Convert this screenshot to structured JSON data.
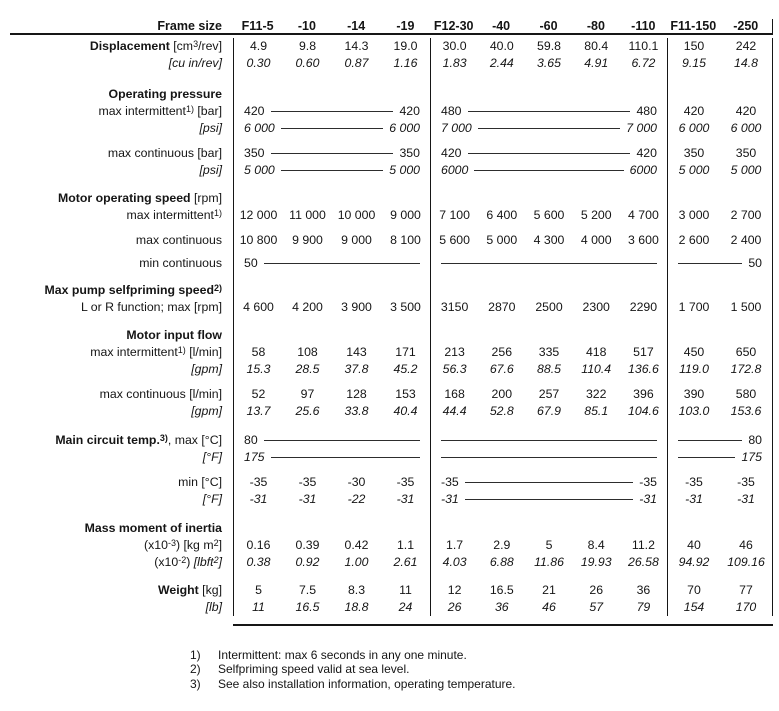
{
  "header": {
    "label": "Frame size",
    "columns": [
      "F11-5",
      "-10",
      "-14",
      "-19",
      "F12-30",
      "-40",
      "-60",
      "-80",
      "-110",
      "F11-150",
      "-250"
    ]
  },
  "rows": [
    {
      "label": [
        {
          "t": "Displacement",
          "s": "b"
        },
        {
          "t": " [cm"
        },
        {
          "t": "3",
          "s": "sup"
        },
        {
          "t": "/rev]"
        }
      ],
      "groups": [
        {
          "cells": [
            "4.9",
            "9.8",
            "14.3",
            "19.0"
          ]
        },
        {
          "cells": [
            "30.0",
            "40.0",
            "59.8",
            "80.4",
            "110.1"
          ]
        },
        {
          "cells": [
            "150",
            "242"
          ]
        }
      ]
    },
    {
      "italic": true,
      "label": [
        {
          "t": "[cu in/rev]",
          "s": "i"
        }
      ],
      "groups": [
        {
          "cells": [
            "0.30",
            "0.60",
            "0.87",
            "1.16"
          ]
        },
        {
          "cells": [
            "1.83",
            "2.44",
            "3.65",
            "4.91",
            "6.72"
          ]
        },
        {
          "cells": [
            "9.15",
            "14.8"
          ]
        }
      ]
    },
    {
      "spacer": 14
    },
    {
      "label": [
        {
          "t": "Operating pressure",
          "s": "b"
        }
      ],
      "groups": [
        {},
        {},
        {}
      ]
    },
    {
      "label": [
        {
          "t": "max intermittent"
        },
        {
          "t": "1)",
          "s": "sup"
        },
        {
          "t": " [bar]"
        }
      ],
      "groups": [
        {
          "left": "420",
          "right": "420"
        },
        {
          "left": "480",
          "right": "480"
        },
        {
          "cells": [
            "420",
            "420"
          ]
        }
      ]
    },
    {
      "italic": true,
      "label": [
        {
          "t": "[psi]",
          "s": "i"
        }
      ],
      "groups": [
        {
          "left": "6 000",
          "right": "6 000"
        },
        {
          "left": "7 000",
          "right": "7 000"
        },
        {
          "cells": [
            "6 000",
            "6 000"
          ]
        }
      ]
    },
    {
      "spacer": 8
    },
    {
      "label": [
        {
          "t": "max continuous [bar]"
        }
      ],
      "groups": [
        {
          "left": "350",
          "right": "350"
        },
        {
          "left": "420",
          "right": "420"
        },
        {
          "cells": [
            "350",
            "350"
          ]
        }
      ]
    },
    {
      "italic": true,
      "label": [
        {
          "t": "[psi]",
          "s": "i"
        }
      ],
      "groups": [
        {
          "left": "5 000",
          "right": "5 000"
        },
        {
          "left": "6000",
          "right": "6000"
        },
        {
          "cells": [
            "5 000",
            "5 000"
          ]
        }
      ]
    },
    {
      "spacer": 11
    },
    {
      "label": [
        {
          "t": "Motor operating speed",
          "s": "b"
        },
        {
          "t": " [rpm]"
        }
      ],
      "groups": [
        {},
        {},
        {}
      ]
    },
    {
      "label": [
        {
          "t": "max intermittent"
        },
        {
          "t": "1)",
          "s": "sup"
        }
      ],
      "groups": [
        {
          "cells": [
            "12 000",
            "11 000",
            "10 000",
            "9 000"
          ]
        },
        {
          "cells": [
            "7 100",
            "6 400",
            "5 600",
            "5 200",
            "4 700"
          ]
        },
        {
          "cells": [
            "3 000",
            "2 700"
          ]
        }
      ]
    },
    {
      "spacer": 8
    },
    {
      "label": [
        {
          "t": "max continuous"
        }
      ],
      "groups": [
        {
          "cells": [
            "10 800",
            "9 900",
            "9 000",
            "8 100"
          ]
        },
        {
          "cells": [
            "5 600",
            "5 000",
            "4 300",
            "4 000",
            "3 600"
          ]
        },
        {
          "cells": [
            "2 600",
            "2 400"
          ]
        }
      ]
    },
    {
      "spacer": 6
    },
    {
      "label": [
        {
          "t": "min continuous"
        }
      ],
      "groups": [
        {
          "left": "50"
        },
        {
          "line": true
        },
        {
          "right": "50"
        }
      ]
    },
    {
      "spacer": 10
    },
    {
      "label": [
        {
          "t": "Max pump selfpriming speed",
          "s": "b"
        },
        {
          "t": "2)",
          "s": "bsup"
        }
      ],
      "groups": [
        {},
        {},
        {}
      ]
    },
    {
      "label": [
        {
          "t": "L or R function; max [rpm]"
        }
      ],
      "groups": [
        {
          "cells": [
            "4 600",
            "4 200",
            "3 900",
            "3 500"
          ]
        },
        {
          "cells": [
            "3150",
            "2870",
            "2500",
            "2300",
            "2290"
          ]
        },
        {
          "cells": [
            "1 700",
            "1 500"
          ]
        }
      ]
    },
    {
      "spacer": 11
    },
    {
      "label": [
        {
          "t": "Motor input flow",
          "s": "b"
        }
      ],
      "groups": [
        {},
        {},
        {}
      ]
    },
    {
      "label": [
        {
          "t": "max intermittent"
        },
        {
          "t": "1)",
          "s": "sup"
        },
        {
          "t": " [l/min]"
        }
      ],
      "groups": [
        {
          "cells": [
            "58",
            "108",
            "143",
            "171"
          ]
        },
        {
          "cells": [
            "213",
            "256",
            "335",
            "418",
            "517"
          ]
        },
        {
          "cells": [
            "450",
            "650"
          ]
        }
      ]
    },
    {
      "italic": true,
      "label": [
        {
          "t": "[gpm]",
          "s": "i"
        }
      ],
      "groups": [
        {
          "cells": [
            "15.3",
            "28.5",
            "37.8",
            "45.2"
          ]
        },
        {
          "cells": [
            "56.3",
            "67.6",
            "88.5",
            "110.4",
            "136.6"
          ]
        },
        {
          "cells": [
            "119.0",
            "172.8"
          ]
        }
      ]
    },
    {
      "spacer": 8
    },
    {
      "label": [
        {
          "t": "max continuous [l/min]"
        }
      ],
      "groups": [
        {
          "cells": [
            "52",
            "97",
            "128",
            "153"
          ]
        },
        {
          "cells": [
            "168",
            "200",
            "257",
            "322",
            "396"
          ]
        },
        {
          "cells": [
            "390",
            "580"
          ]
        }
      ]
    },
    {
      "italic": true,
      "label": [
        {
          "t": "[gpm]",
          "s": "i"
        }
      ],
      "groups": [
        {
          "cells": [
            "13.7",
            "25.6",
            "33.8",
            "40.4"
          ]
        },
        {
          "cells": [
            "44.4",
            "52.8",
            "67.9",
            "85.1",
            "104.6"
          ]
        },
        {
          "cells": [
            "103.0",
            "153.6"
          ]
        }
      ]
    },
    {
      "spacer": 12
    },
    {
      "label": [
        {
          "t": "Main circuit temp.",
          "s": "b"
        },
        {
          "t": "3)",
          "s": "bsup"
        },
        {
          "t": ", max [°C]"
        }
      ],
      "groups": [
        {
          "left": "80"
        },
        {
          "line": true
        },
        {
          "right": "80"
        }
      ]
    },
    {
      "italic": true,
      "label": [
        {
          "t": "[°F]",
          "s": "i"
        }
      ],
      "groups": [
        {
          "left": "175"
        },
        {
          "line": true
        },
        {
          "right": "175"
        }
      ]
    },
    {
      "spacer": 8
    },
    {
      "label": [
        {
          "t": "min [°C]"
        }
      ],
      "groups": [
        {
          "cells": [
            "-35",
            "-35",
            "-30",
            "-35"
          ]
        },
        {
          "left": "-35",
          "right": "-35"
        },
        {
          "cells": [
            "-35",
            "-35"
          ]
        }
      ]
    },
    {
      "italic": true,
      "label": [
        {
          "t": "[°F]",
          "s": "i"
        }
      ],
      "groups": [
        {
          "cells": [
            "-31",
            "-31",
            "-22",
            "-31"
          ]
        },
        {
          "left": "-31",
          "right": "-31"
        },
        {
          "cells": [
            "-31",
            "-31"
          ]
        }
      ]
    },
    {
      "spacer": 12
    },
    {
      "label": [
        {
          "t": "Mass moment of inertia",
          "s": "b"
        }
      ],
      "groups": [
        {},
        {},
        {}
      ]
    },
    {
      "label": [
        {
          "t": "(x10"
        },
        {
          "t": "-3",
          "s": "sup"
        },
        {
          "t": ") [kg m"
        },
        {
          "t": "2",
          "s": "sup"
        },
        {
          "t": "]"
        }
      ],
      "groups": [
        {
          "cells": [
            "0.16",
            "0.39",
            "0.42",
            "1.1"
          ]
        },
        {
          "cells": [
            "1.7",
            "2.9",
            "5",
            "8.4",
            "11.2"
          ]
        },
        {
          "cells": [
            "40",
            "46"
          ]
        }
      ]
    },
    {
      "italic": true,
      "label": [
        {
          "t": "(x10"
        },
        {
          "t": "-2",
          "s": "sup"
        },
        {
          "t": ") "
        },
        {
          "t": "[lbft",
          "s": "i"
        },
        {
          "t": "2",
          "s": "isup"
        },
        {
          "t": "]",
          "s": "i"
        }
      ],
      "groups": [
        {
          "cells": [
            "0.38",
            "0.92",
            "1.00",
            "2.61"
          ]
        },
        {
          "cells": [
            "4.03",
            "6.88",
            "11.86",
            "19.93",
            "26.58"
          ]
        },
        {
          "cells": [
            "94.92",
            "109.16"
          ]
        }
      ]
    },
    {
      "spacer": 11
    },
    {
      "label": [
        {
          "t": "Weight",
          "s": "b"
        },
        {
          "t": " [kg]"
        }
      ],
      "groups": [
        {
          "cells": [
            "5",
            "7.5",
            "8.3",
            "11"
          ]
        },
        {
          "cells": [
            "12",
            "16.5",
            "21",
            "26",
            "36"
          ]
        },
        {
          "cells": [
            "70",
            "77"
          ]
        }
      ]
    },
    {
      "italic": true,
      "label": [
        {
          "t": "[lb]",
          "s": "i"
        }
      ],
      "groups": [
        {
          "cells": [
            "11",
            "16.5",
            "18.8",
            "24"
          ]
        },
        {
          "cells": [
            "26",
            "36",
            "46",
            "57",
            "79"
          ]
        },
        {
          "cells": [
            "154",
            "170"
          ]
        }
      ]
    }
  ],
  "group_sizes": [
    4,
    5,
    2
  ],
  "footnotes": [
    {
      "marker": "1)",
      "text": "Intermittent: max 6 seconds in any one minute."
    },
    {
      "marker": "2)",
      "text": "Selfpriming speed valid at sea level."
    },
    {
      "marker": "3)",
      "text": "See also installation information, operating temperature."
    }
  ],
  "colors": {
    "rule": "#161616",
    "text": "#151515"
  }
}
